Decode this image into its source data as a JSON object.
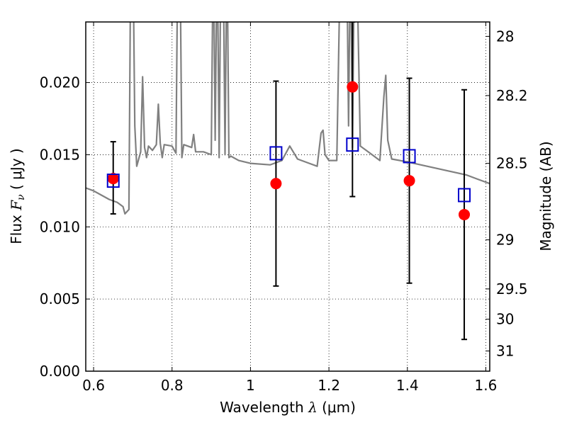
{
  "chart_data": {
    "type": "line",
    "xlabel_text": "Wavelength",
    "xlabel_symbol": "λ",
    "xlabel_unit": "(μm)",
    "ylabel_text": "Flux",
    "ylabel_symbol": "F",
    "ylabel_subscript": "ν",
    "ylabel_unit": "( μJy )",
    "y2label": "Magnitude (AB)",
    "xlim": [
      0.58,
      1.61
    ],
    "ylim": [
      0.0,
      0.0242
    ],
    "grid": true,
    "x_ticks": [
      0.6,
      0.8,
      1.0,
      1.2,
      1.4,
      1.6
    ],
    "x_tick_labels": [
      "0.6",
      "0.8",
      "1",
      "1.2",
      "1.4",
      "1.6"
    ],
    "y_ticks": [
      0.0,
      0.005,
      0.01,
      0.015,
      0.02
    ],
    "y_tick_labels": [
      "0.000",
      "0.005",
      "0.010",
      "0.015",
      "0.020"
    ],
    "y2_ticks": [
      {
        "flux": 0.0232,
        "label": "28"
      },
      {
        "flux": 0.0191,
        "label": "28.2"
      },
      {
        "flux": 0.0144,
        "label": "28.5"
      },
      {
        "flux": 0.0091,
        "label": "29"
      },
      {
        "flux": 0.0057,
        "label": "29.5"
      },
      {
        "flux": 0.0036,
        "label": "30"
      },
      {
        "flux": 0.0014,
        "label": "31"
      }
    ],
    "series": [
      {
        "kind": "model-spectrum",
        "color": "#808080",
        "x": [
          0.58,
          0.6,
          0.62,
          0.64,
          0.66,
          0.675,
          0.68,
          0.69,
          0.695,
          0.7,
          0.705,
          0.71,
          0.72,
          0.725,
          0.73,
          0.735,
          0.74,
          0.75,
          0.76,
          0.765,
          0.77,
          0.775,
          0.78,
          0.8,
          0.81,
          0.815,
          0.82,
          0.825,
          0.83,
          0.85,
          0.855,
          0.86,
          0.88,
          0.9,
          0.905,
          0.91,
          0.915,
          0.92,
          0.925,
          0.93,
          0.935,
          0.94,
          0.945,
          0.95,
          0.97,
          1.0,
          1.05,
          1.08,
          1.1,
          1.12,
          1.15,
          1.17,
          1.18,
          1.185,
          1.19,
          1.2,
          1.22,
          1.23,
          1.24,
          1.245,
          1.25,
          1.255,
          1.26,
          1.265,
          1.27,
          1.28,
          1.3,
          1.33,
          1.34,
          1.345,
          1.35,
          1.36,
          1.4,
          1.45,
          1.5,
          1.55,
          1.58,
          1.61
        ],
        "y": [
          0.0127,
          0.0125,
          0.0122,
          0.0119,
          0.0117,
          0.0114,
          0.0109,
          0.0112,
          0.03,
          0.03,
          0.017,
          0.0142,
          0.0152,
          0.0204,
          0.0155,
          0.0148,
          0.0156,
          0.0153,
          0.0157,
          0.0185,
          0.0158,
          0.0148,
          0.0157,
          0.0156,
          0.0151,
          0.03,
          0.03,
          0.0148,
          0.0157,
          0.0155,
          0.0164,
          0.0152,
          0.0152,
          0.015,
          0.03,
          0.016,
          0.03,
          0.0148,
          0.03,
          0.03,
          0.015,
          0.03,
          0.0148,
          0.0149,
          0.0146,
          0.0144,
          0.0143,
          0.0146,
          0.0156,
          0.0147,
          0.0144,
          0.0142,
          0.0165,
          0.0167,
          0.015,
          0.0146,
          0.0146,
          0.03,
          0.03,
          0.03,
          0.017,
          0.03,
          0.0155,
          0.03,
          0.03,
          0.0156,
          0.0152,
          0.0146,
          0.019,
          0.0205,
          0.016,
          0.0147,
          0.0145,
          0.0142,
          0.0139,
          0.0136,
          0.0133,
          0.013
        ]
      },
      {
        "kind": "observed-points",
        "color": "#ff0000",
        "x": [
          0.65,
          1.065,
          1.26,
          1.405,
          1.545
        ],
        "y": [
          0.01335,
          0.013,
          0.0197,
          0.0132,
          0.01085
        ],
        "yerr_low": [
          0.0109,
          0.0059,
          0.0121,
          0.0061,
          0.0022
        ],
        "yerr_high": [
          0.0159,
          0.0201,
          0.0242,
          0.0203,
          0.0195
        ]
      },
      {
        "kind": "model-points",
        "color": "#0000cc",
        "x": [
          0.65,
          1.065,
          1.26,
          1.405,
          1.545
        ],
        "y": [
          0.0132,
          0.0151,
          0.0157,
          0.0149,
          0.0122
        ]
      }
    ]
  }
}
